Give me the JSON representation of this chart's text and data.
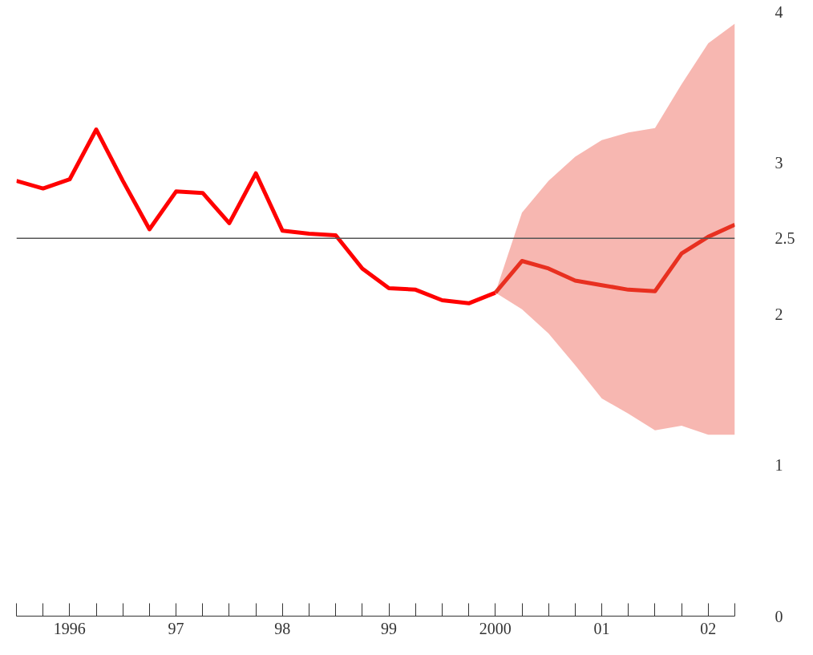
{
  "chart_data": {
    "type": "line",
    "x": [
      1995.5,
      1995.75,
      1996.0,
      1996.25,
      1996.5,
      1996.75,
      1997.0,
      1997.25,
      1997.5,
      1997.75,
      1998.0,
      1998.25,
      1998.5,
      1998.75,
      1999.0,
      1999.25,
      1999.5,
      1999.75,
      2000.0
    ],
    "series": [
      {
        "color": "#ff0000",
        "values": [
          2.88,
          2.83,
          2.89,
          3.22,
          2.88,
          2.56,
          2.81,
          2.8,
          2.6,
          2.93,
          2.55,
          2.53,
          2.52,
          2.3,
          2.17,
          2.16,
          2.09,
          2.07,
          2.14
        ]
      },
      {
        "color": "#e83020",
        "x": [
          2000.0,
          2000.25,
          2000.5,
          2000.75,
          2001.0,
          2001.25,
          2001.5,
          2001.75,
          2002.0,
          2002.25
        ],
        "values": [
          2.14,
          2.35,
          2.3,
          2.22,
          2.19,
          2.16,
          2.15,
          2.4,
          2.51,
          2.59
        ],
        "lower": [
          2.14,
          2.03,
          1.87,
          1.66,
          1.44,
          1.34,
          1.23,
          1.26,
          1.2,
          1.2
        ],
        "upper": [
          2.14,
          2.67,
          2.88,
          3.04,
          3.15,
          3.2,
          3.23,
          3.52,
          3.79,
          3.92
        ]
      }
    ],
    "xlim": [
      1995.5,
      2002.25
    ],
    "xticks": [
      {
        "value": 1995.5,
        "label": null
      },
      {
        "value": 1995.75,
        "label": null
      },
      {
        "value": 1996,
        "label": "1996"
      },
      {
        "value": 1996.25,
        "label": null
      },
      {
        "value": 1996.5,
        "label": null
      },
      {
        "value": 1996.75,
        "label": null
      },
      {
        "value": 1997,
        "label": "97"
      },
      {
        "value": 1997.25,
        "label": null
      },
      {
        "value": 1997.5,
        "label": null
      },
      {
        "value": 1997.75,
        "label": null
      },
      {
        "value": 1998,
        "label": "98"
      },
      {
        "value": 1998.25,
        "label": null
      },
      {
        "value": 1998.5,
        "label": null
      },
      {
        "value": 1998.75,
        "label": null
      },
      {
        "value": 1999,
        "label": "99"
      },
      {
        "value": 1999.25,
        "label": null
      },
      {
        "value": 1999.5,
        "label": null
      },
      {
        "value": 1999.75,
        "label": null
      },
      {
        "value": 2000,
        "label": "2000"
      },
      {
        "value": 2000.25,
        "label": null
      },
      {
        "value": 2000.5,
        "label": null
      },
      {
        "value": 2000.75,
        "label": null
      },
      {
        "value": 2001,
        "label": "01"
      },
      {
        "value": 2001.25,
        "label": null
      },
      {
        "value": 2001.5,
        "label": null
      },
      {
        "value": 2001.75,
        "label": null
      },
      {
        "value": 2002,
        "label": "02"
      },
      {
        "value": 2002.25,
        "label": null
      }
    ],
    "ylim": [
      0,
      4
    ],
    "yticks": [
      0,
      1,
      2,
      2.5,
      3,
      4
    ],
    "ref_lines": [
      {
        "axis": "y",
        "value": 2.5,
        "color": "#555555"
      }
    ],
    "grid": false,
    "line_style": "solid",
    "marker": "none"
  }
}
